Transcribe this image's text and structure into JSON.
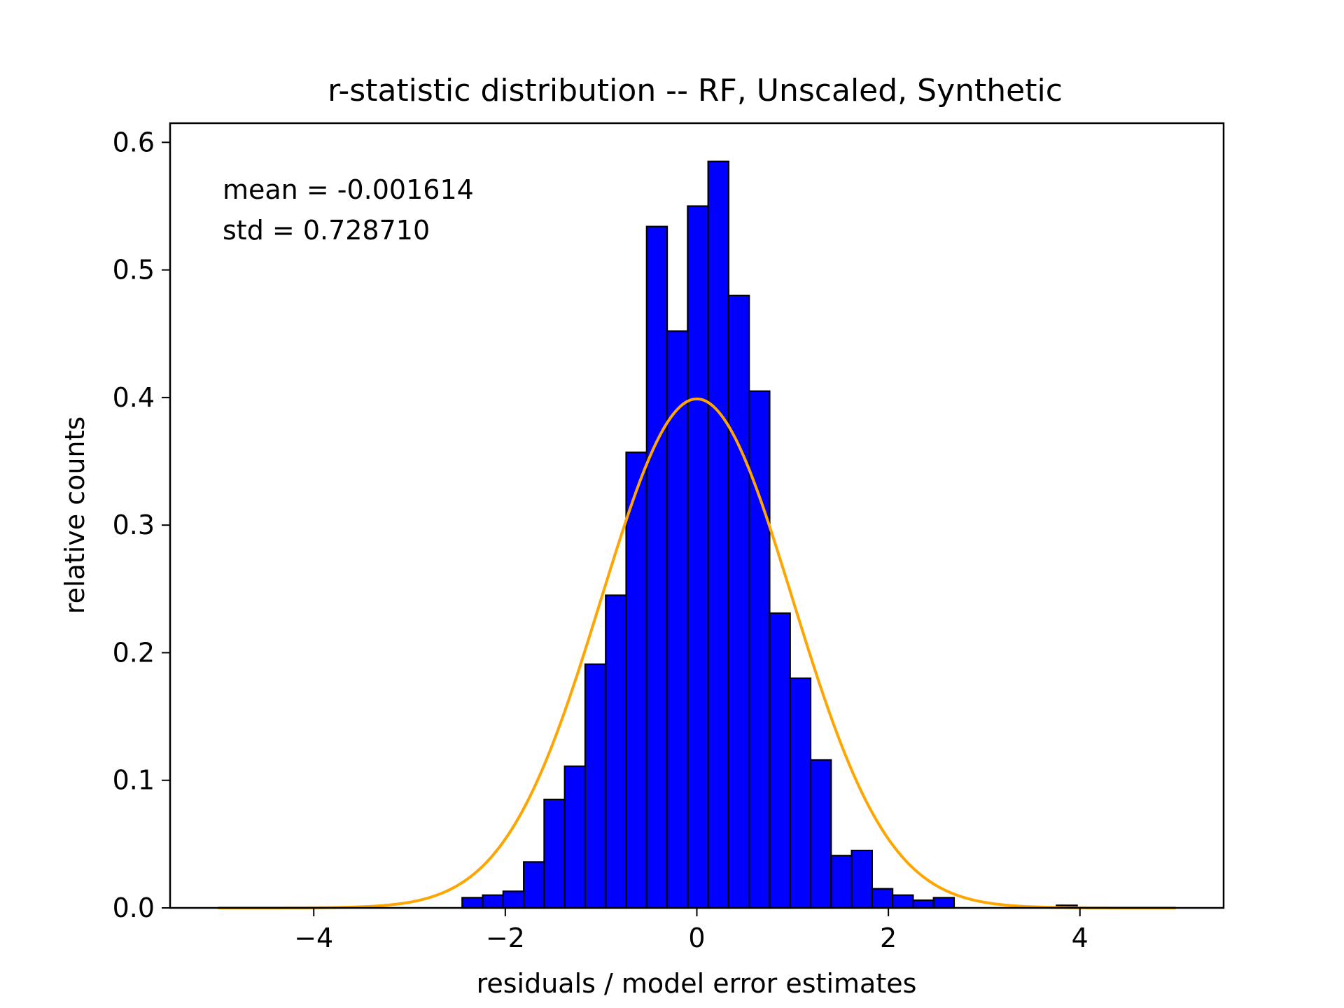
{
  "chart_data": {
    "type": "bar",
    "title": "r-statistic distribution -- RF, Unscaled, Synthetic",
    "xlabel": "residuals / model error estimates",
    "ylabel": "relative counts",
    "xlim": [
      -5.5,
      5.5
    ],
    "ylim": [
      0.0,
      0.615
    ],
    "xticks": [
      -4,
      -2,
      0,
      2,
      4
    ],
    "xtick_labels": [
      "−4",
      "−2",
      "0",
      "2",
      "4"
    ],
    "yticks": [
      0.0,
      0.1,
      0.2,
      0.3,
      0.4,
      0.5,
      0.6
    ],
    "ytick_labels": [
      "0.0",
      "0.1",
      "0.2",
      "0.3",
      "0.4",
      "0.5",
      "0.6"
    ],
    "annotations": [
      "mean = -0.001614",
      "std = 0.728710"
    ],
    "grid": false,
    "histogram": {
      "bin_edges": [
        -2.45,
        -2.236,
        -2.022,
        -1.808,
        -1.594,
        -1.38,
        -1.166,
        -0.952,
        -0.738,
        -0.524,
        -0.31,
        -0.096,
        0.118,
        0.332,
        0.546,
        0.76,
        0.974,
        1.188,
        1.402,
        1.616,
        1.83,
        2.044,
        2.258,
        2.472,
        2.686,
        2.9,
        3.114,
        3.328,
        3.542,
        3.756,
        3.97
      ],
      "values": [
        0.008,
        0.01,
        0.013,
        0.036,
        0.085,
        0.111,
        0.191,
        0.245,
        0.357,
        0.534,
        0.452,
        0.55,
        0.585,
        0.48,
        0.405,
        0.231,
        0.18,
        0.116,
        0.041,
        0.045,
        0.015,
        0.01,
        0.006,
        0.008,
        0.0,
        0.0,
        0.0,
        0.0,
        0.0,
        0.002
      ],
      "fill_color": "#0000ff",
      "edge_color": "#000000"
    },
    "curve": {
      "type": "normal_pdf",
      "mean": 0,
      "std": 1,
      "x_range": [
        -5,
        5
      ],
      "color": "#ffa500"
    }
  }
}
